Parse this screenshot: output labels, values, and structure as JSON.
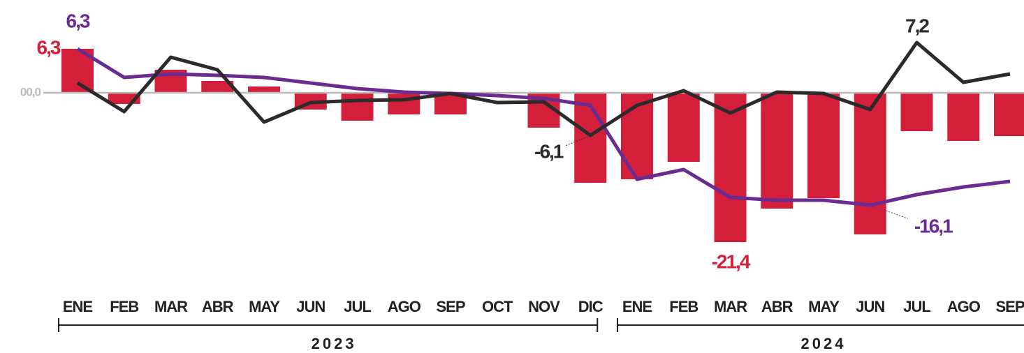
{
  "chart_data": {
    "type": "bar-line",
    "categories": [
      "ENE",
      "FEB",
      "MAR",
      "ABR",
      "MAY",
      "JUN",
      "JUL",
      "AGO",
      "SEP",
      "OCT",
      "NOV",
      "DIC",
      "ENE",
      "FEB",
      "MAR",
      "ABR",
      "MAY",
      "JUN",
      "JUL",
      "AGO",
      "SEP"
    ],
    "x_groups": [
      "2023",
      "2024"
    ],
    "ylim": [
      -25,
      9
    ],
    "yticks": [
      {
        "value": 0,
        "label": "00,0"
      }
    ],
    "series": [
      {
        "type": "bar",
        "color": "#d41f3a",
        "values": [
          6.3,
          -1.6,
          3.3,
          1.7,
          0.9,
          -2.4,
          -4.0,
          -3.1,
          -3.1,
          0,
          -5.0,
          -12.9,
          -12.4,
          -9.9,
          -21.4,
          -16.6,
          -15.1,
          -20.3,
          -5.5,
          -6.9,
          -6.2
        ],
        "value_labels": [
          "6,3",
          null,
          null,
          null,
          null,
          null,
          null,
          null,
          null,
          null,
          null,
          null,
          null,
          null,
          "-21,4",
          null,
          null,
          null,
          null,
          null,
          null
        ]
      },
      {
        "type": "line",
        "color": "#6a2c91",
        "values": [
          6.3,
          2.2,
          2.7,
          2.5,
          2.2,
          1.4,
          0.6,
          0.1,
          -0.1,
          -0.4,
          -0.8,
          -1.8,
          -12.4,
          -11.0,
          -15.0,
          -15.4,
          -15.4,
          -16.1,
          -14.6,
          -13.5,
          -12.7
        ],
        "value_labels": [
          "6,3",
          null,
          null,
          null,
          null,
          null,
          null,
          null,
          null,
          null,
          null,
          null,
          null,
          null,
          null,
          null,
          null,
          "-16,1",
          null,
          null,
          null
        ]
      },
      {
        "type": "line",
        "color": "#2b2b2b",
        "values": [
          1.4,
          -2.7,
          5.1,
          3.3,
          -4.2,
          -1.4,
          -1.1,
          -1.0,
          -0.1,
          -1.4,
          -1.3,
          -6.1,
          -1.8,
          0.3,
          -2.9,
          0.1,
          -0.1,
          -2.4,
          7.2,
          1.5,
          2.7
        ],
        "value_labels": [
          null,
          null,
          null,
          null,
          null,
          null,
          null,
          null,
          null,
          null,
          null,
          "-6,1",
          null,
          null,
          null,
          null,
          null,
          null,
          "7,2",
          null,
          null
        ]
      }
    ]
  }
}
